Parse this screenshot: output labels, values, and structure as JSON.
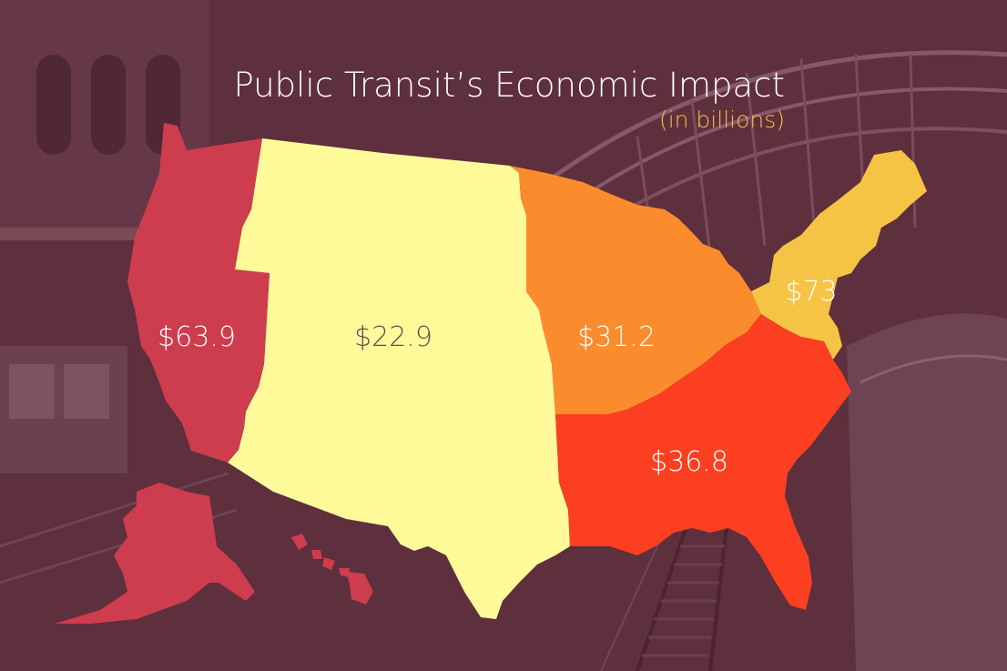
{
  "title": "Public Transit’s Economic Impact",
  "subtitle": "(in billions)",
  "colors": {
    "background": "#5e2f3d",
    "subtitle": "#f4c042",
    "label_light": "#ffffff",
    "label_dark": "#6b4a4e"
  },
  "regions": [
    {
      "id": "west",
      "value": "$63.9",
      "color": "#cd3d4d",
      "label_tone": "light"
    },
    {
      "id": "mountain-plains",
      "value": "$22.9",
      "color": "#fefa9a",
      "label_tone": "dark"
    },
    {
      "id": "midwest",
      "value": "$31.2",
      "color": "#fb8c2e",
      "label_tone": "light"
    },
    {
      "id": "northeast",
      "value": "$73",
      "color": "#f5c444",
      "label_tone": "light"
    },
    {
      "id": "south",
      "value": "$36.8",
      "color": "#fd3f21",
      "label_tone": "light"
    }
  ]
}
